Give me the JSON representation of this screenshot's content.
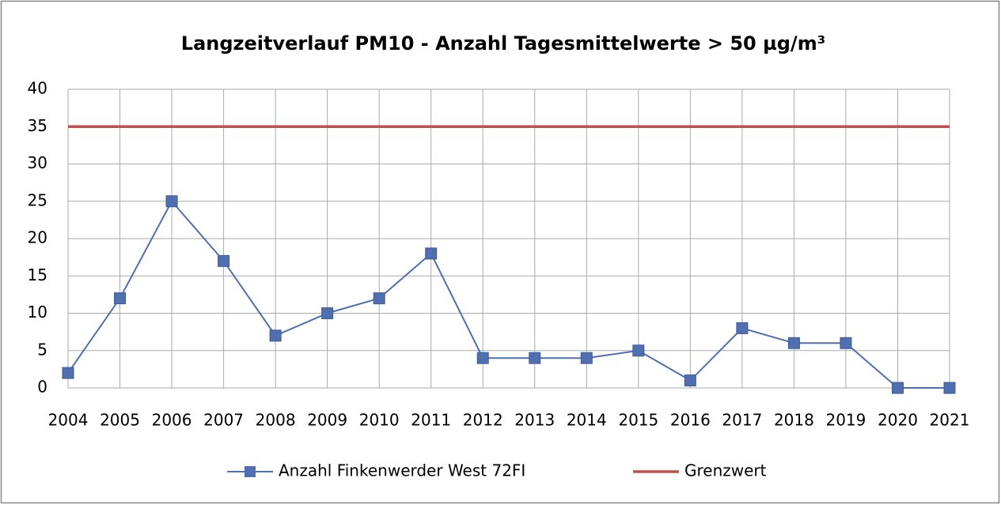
{
  "chart_data": {
    "type": "line",
    "title": "Langzeitverlauf PM10 - Anzahl Tagesmittelwerte > 50 µg/m³",
    "categories": [
      "2004",
      "2005",
      "2006",
      "2007",
      "2008",
      "2009",
      "2010",
      "2011",
      "2012",
      "2013",
      "2014",
      "2015",
      "2016",
      "2017",
      "2018",
      "2019",
      "2020",
      "2021"
    ],
    "series": [
      {
        "name": "Anzahl Finkenwerder West 72FI",
        "color": "#4f6fb0",
        "marker": "square",
        "values": [
          2,
          12,
          25,
          17,
          7,
          10,
          12,
          18,
          4,
          4,
          4,
          5,
          1,
          8,
          6,
          6,
          0,
          0
        ]
      },
      {
        "name": "Grenzwert",
        "color": "#c0504d",
        "values": [
          35,
          35,
          35,
          35,
          35,
          35,
          35,
          35,
          35,
          35,
          35,
          35,
          35,
          35,
          35,
          35,
          35,
          35
        ]
      }
    ],
    "ylim": [
      0,
      40
    ],
    "yticks": [
      0,
      5,
      10,
      15,
      20,
      25,
      30,
      35,
      40
    ],
    "grid": true,
    "legend": "bottom"
  }
}
